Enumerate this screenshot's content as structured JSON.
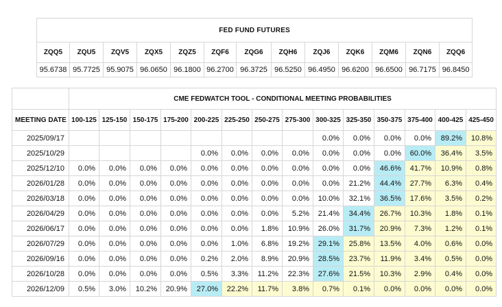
{
  "futures": {
    "title": "FED FUND FUTURES",
    "headers": [
      "ZQQ5",
      "ZQU5",
      "ZQV5",
      "ZQX5",
      "ZQZ5",
      "ZQF6",
      "ZQG6",
      "ZQH6",
      "ZQJ6",
      "ZQK6",
      "ZQM6",
      "ZQN6",
      "ZQQ6"
    ],
    "values": [
      "95.6738",
      "95.7725",
      "95.9075",
      "96.0650",
      "96.1800",
      "96.2700",
      "96.3725",
      "96.5250",
      "96.4950",
      "96.6200",
      "96.6500",
      "96.7175",
      "96.8450"
    ]
  },
  "fedwatch": {
    "title": "CME FEDWATCH TOOL - CONDITIONAL MEETING PROBABILITIES",
    "date_header": "MEETING DATE",
    "ranges": [
      "100-125",
      "125-150",
      "150-175",
      "175-200",
      "200-225",
      "225-250",
      "250-275",
      "275-300",
      "300-325",
      "325-350",
      "350-375",
      "375-400",
      "400-425",
      "425-450"
    ],
    "colors": {
      "max": "#b8ecf5",
      "above_max": "#fcfcd0"
    },
    "rows": [
      {
        "date": "2025/09/17",
        "cells": [
          "",
          "",
          "",
          "",
          "",
          "",
          "",
          "",
          "0.0%",
          "0.0%",
          "0.0%",
          "0.0%",
          "89.2%",
          "10.8%"
        ]
      },
      {
        "date": "2025/10/29",
        "cells": [
          "",
          "",
          "",
          "",
          "0.0%",
          "0.0%",
          "0.0%",
          "0.0%",
          "0.0%",
          "0.0%",
          "0.0%",
          "60.0%",
          "36.4%",
          "3.5%"
        ]
      },
      {
        "date": "2025/12/10",
        "cells": [
          "0.0%",
          "0.0%",
          "0.0%",
          "0.0%",
          "0.0%",
          "0.0%",
          "0.0%",
          "0.0%",
          "0.0%",
          "0.0%",
          "46.6%",
          "41.7%",
          "10.9%",
          "0.8%"
        ]
      },
      {
        "date": "2026/01/28",
        "cells": [
          "0.0%",
          "0.0%",
          "0.0%",
          "0.0%",
          "0.0%",
          "0.0%",
          "0.0%",
          "0.0%",
          "0.0%",
          "21.2%",
          "44.4%",
          "27.7%",
          "6.3%",
          "0.4%"
        ]
      },
      {
        "date": "2026/03/18",
        "cells": [
          "0.0%",
          "0.0%",
          "0.0%",
          "0.0%",
          "0.0%",
          "0.0%",
          "0.0%",
          "0.0%",
          "10.0%",
          "32.1%",
          "36.5%",
          "17.6%",
          "3.5%",
          "0.2%"
        ]
      },
      {
        "date": "2026/04/29",
        "cells": [
          "0.0%",
          "0.0%",
          "0.0%",
          "0.0%",
          "0.0%",
          "0.0%",
          "0.0%",
          "5.2%",
          "21.4%",
          "34.4%",
          "26.7%",
          "10.3%",
          "1.8%",
          "0.1%"
        ]
      },
      {
        "date": "2026/06/17",
        "cells": [
          "0.0%",
          "0.0%",
          "0.0%",
          "0.0%",
          "0.0%",
          "0.0%",
          "1.8%",
          "10.9%",
          "26.0%",
          "31.7%",
          "20.9%",
          "7.3%",
          "1.2%",
          "0.1%"
        ]
      },
      {
        "date": "2026/07/29",
        "cells": [
          "0.0%",
          "0.0%",
          "0.0%",
          "0.0%",
          "0.0%",
          "1.0%",
          "6.8%",
          "19.2%",
          "29.1%",
          "25.8%",
          "13.5%",
          "4.0%",
          "0.6%",
          "0.0%"
        ]
      },
      {
        "date": "2026/09/16",
        "cells": [
          "0.0%",
          "0.0%",
          "0.0%",
          "0.0%",
          "0.2%",
          "2.0%",
          "8.9%",
          "20.9%",
          "28.5%",
          "23.7%",
          "11.9%",
          "3.4%",
          "0.5%",
          "0.0%"
        ]
      },
      {
        "date": "2026/10/28",
        "cells": [
          "0.0%",
          "0.0%",
          "0.0%",
          "0.0%",
          "0.5%",
          "3.3%",
          "11.2%",
          "22.3%",
          "27.6%",
          "21.5%",
          "10.3%",
          "2.9%",
          "0.4%",
          "0.0%"
        ]
      },
      {
        "date": "2026/12/09",
        "cells": [
          "0.5%",
          "3.0%",
          "10.2%",
          "20.9%",
          "27.0%",
          "22.2%",
          "11.7%",
          "3.8%",
          "0.7%",
          "0.1%",
          "0.0%",
          "0.0%",
          "0.0%",
          "0.0%"
        ]
      }
    ],
    "highlight": [
      {
        "max": 12,
        "above": [
          13
        ]
      },
      {
        "max": 11,
        "above": [
          12,
          13
        ]
      },
      {
        "max": 10,
        "above": [
          11,
          12,
          13
        ]
      },
      {
        "max": 10,
        "above": [
          11,
          12,
          13
        ]
      },
      {
        "max": 10,
        "above": [
          11,
          12,
          13
        ]
      },
      {
        "max": 9,
        "above": [
          10,
          11,
          12,
          13
        ]
      },
      {
        "max": 9,
        "above": [
          10,
          11,
          12,
          13
        ]
      },
      {
        "max": 8,
        "above": [
          9,
          10,
          11,
          12,
          13
        ]
      },
      {
        "max": 8,
        "above": [
          9,
          10,
          11,
          12,
          13
        ]
      },
      {
        "max": 8,
        "above": [
          9,
          10,
          11,
          12,
          13
        ]
      },
      {
        "max": 4,
        "above": [
          5,
          6,
          7,
          8,
          9,
          10,
          11,
          12,
          13
        ]
      }
    ]
  }
}
